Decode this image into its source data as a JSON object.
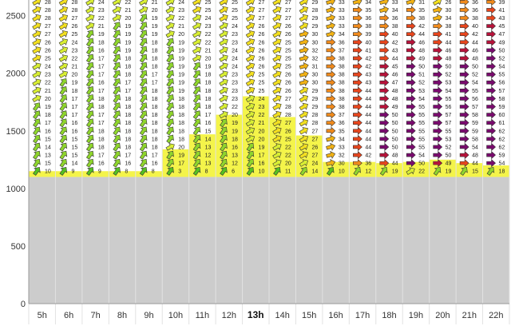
{
  "chart_data": {
    "type": "table",
    "description_free": true,
    "hours": [
      "5h",
      "6h",
      "7h",
      "8h",
      "9h",
      "10h",
      "11h",
      "12h",
      "13h",
      "14h",
      "15h",
      "16h",
      "17h",
      "18h",
      "19h",
      "20h",
      "21h",
      "22h"
    ],
    "current_hour": "13h",
    "y_ticks": [
      0,
      500,
      1000,
      1500,
      2000,
      2500
    ],
    "ylim": [
      0,
      2650
    ],
    "ground_level": 1100,
    "altitude_levels": [
      1150,
      1220,
      1290,
      1360,
      1430,
      1500,
      1570,
      1640,
      1710,
      1780,
      1850,
      1920,
      1990,
      2060,
      2130,
      2200,
      2270,
      2340,
      2410,
      2480,
      2550,
      2620
    ],
    "boundary_layer_top": [
      1150,
      1150,
      1150,
      1150,
      1150,
      1340,
      1470,
      1640,
      1800,
      1620,
      1460,
      1230,
      1230,
      1220,
      1230,
      1250,
      1220,
      1200
    ],
    "speeds": [
      [
        10,
        15,
        13,
        14,
        15,
        16,
        17,
        18,
        19,
        20,
        21,
        22,
        23,
        24,
        25,
        26,
        26,
        27,
        27,
        28,
        28,
        28
      ],
      [
        9,
        14,
        15,
        15,
        15,
        16,
        16,
        17,
        17,
        17,
        18,
        19,
        20,
        21,
        22,
        23,
        24,
        25,
        26,
        27,
        28,
        28
      ],
      [
        9,
        16,
        17,
        18,
        18,
        18,
        17,
        17,
        18,
        18,
        17,
        16,
        17,
        17,
        17,
        16,
        18,
        19,
        21,
        22,
        23,
        24
      ],
      [
        8,
        16,
        17,
        18,
        18,
        18,
        18,
        18,
        18,
        18,
        17,
        17,
        18,
        18,
        18,
        19,
        19,
        19,
        19,
        20,
        21,
        22
      ],
      [
        8,
        16,
        17,
        18,
        18,
        18,
        18,
        18,
        18,
        18,
        18,
        17,
        17,
        18,
        18,
        18,
        18,
        19,
        19,
        19,
        20,
        21
      ],
      [
        3,
        17,
        19,
        20,
        18,
        18,
        18,
        18,
        18,
        18,
        19,
        19,
        19,
        19,
        19,
        19,
        19,
        20,
        21,
        22,
        23,
        24
      ],
      [
        8,
        13,
        12,
        13,
        14,
        15,
        16,
        17,
        18,
        18,
        18,
        18,
        18,
        19,
        20,
        21,
        22,
        22,
        23,
        24,
        25,
        25
      ],
      [
        6,
        12,
        13,
        16,
        18,
        19,
        19,
        20,
        22,
        23,
        23,
        23,
        23,
        24,
        24,
        24,
        23,
        23,
        24,
        25,
        25,
        25
      ],
      [
        10,
        16,
        17,
        19,
        20,
        20,
        21,
        22,
        23,
        24,
        25,
        25,
        25,
        26,
        26,
        26,
        26,
        26,
        26,
        27,
        27,
        27
      ],
      [
        11,
        20,
        22,
        22,
        25,
        26,
        27,
        28,
        28,
        27,
        26,
        26,
        26,
        25,
        25,
        25,
        25,
        26,
        26,
        27,
        27,
        27
      ],
      [
        14,
        24,
        27,
        26,
        27,
        27,
        28,
        28,
        29,
        29,
        29,
        30,
        30,
        31,
        32,
        32,
        30,
        30,
        29,
        29,
        28,
        29
      ],
      [
        10,
        30,
        32,
        33,
        34,
        35,
        36,
        37,
        38,
        38,
        38,
        38,
        38,
        38,
        38,
        37,
        36,
        34,
        33,
        33,
        33,
        33
      ],
      [
        12,
        36,
        42,
        44,
        44,
        44,
        44,
        44,
        44,
        44,
        44,
        43,
        43,
        42,
        42,
        41,
        40,
        39,
        38,
        36,
        35,
        34
      ],
      [
        19,
        44,
        48,
        50,
        50,
        50,
        50,
        50,
        49,
        48,
        48,
        47,
        46,
        45,
        44,
        43,
        42,
        40,
        38,
        36,
        34,
        33
      ],
      [
        22,
        50,
        54,
        55,
        55,
        55,
        55,
        55,
        55,
        54,
        53,
        52,
        51,
        50,
        49,
        48,
        46,
        44,
        42,
        38,
        35,
        31
      ],
      [
        19,
        49,
        50,
        52,
        53,
        55,
        57,
        57,
        56,
        55,
        54,
        53,
        52,
        50,
        48,
        46,
        44,
        41,
        38,
        34,
        30,
        26
      ],
      [
        15,
        44,
        48,
        54,
        58,
        59,
        59,
        58,
        57,
        56,
        55,
        54,
        52,
        50,
        48,
        46,
        44,
        42,
        40,
        38,
        36,
        36
      ],
      [
        18,
        54,
        59,
        62,
        62,
        62,
        61,
        60,
        59,
        58,
        57,
        56,
        55,
        54,
        52,
        50,
        49,
        47,
        45,
        43,
        41,
        39
      ]
    ]
  }
}
